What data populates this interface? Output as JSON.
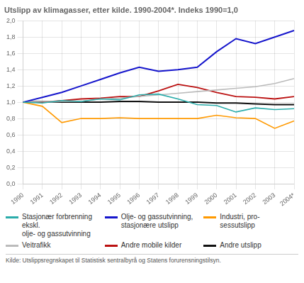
{
  "chart_data": {
    "type": "line",
    "title": "Utslipp av klimagasser, etter kilde. 1990-2004*. Indeks 1990=1,0",
    "categories": [
      "1990",
      "1991",
      "1992",
      "1993",
      "1994",
      "1995",
      "1996",
      "1997",
      "1998",
      "1999",
      "2000",
      "2001",
      "2002",
      "2003",
      "2004*"
    ],
    "series": [
      {
        "name": "Stasjonær forbrenning ekskl.\nolje- og gassutvinning",
        "color": "#2AACAA",
        "values": [
          1.0,
          0.99,
          1.02,
          1.01,
          1.04,
          1.03,
          1.09,
          1.1,
          1.04,
          0.97,
          0.96,
          0.88,
          0.93,
          0.91,
          0.92
        ]
      },
      {
        "name": "Olje- og gassutvinning,\nstasjonære utslipp",
        "color": "#1515CC",
        "values": [
          1.0,
          1.06,
          1.12,
          1.2,
          1.28,
          1.36,
          1.43,
          1.38,
          1.4,
          1.43,
          1.62,
          1.78,
          1.72,
          1.8,
          1.88
        ]
      },
      {
        "name": "Industri, pro-\nsessutslipp",
        "color": "#FF9900",
        "values": [
          1.0,
          0.95,
          0.75,
          0.8,
          0.8,
          0.81,
          0.8,
          0.8,
          0.8,
          0.8,
          0.84,
          0.81,
          0.8,
          0.68,
          0.77
        ]
      },
      {
        "name": "Veitrafikk",
        "color": "#BBBBBB",
        "values": [
          1.0,
          1.01,
          1.01,
          1.01,
          1.04,
          1.05,
          1.07,
          1.09,
          1.11,
          1.13,
          1.15,
          1.17,
          1.19,
          1.23,
          1.29
        ]
      },
      {
        "name": "Andre mobile kilder",
        "color": "#BB1111",
        "values": [
          1.0,
          1.0,
          1.02,
          1.04,
          1.05,
          1.07,
          1.07,
          1.14,
          1.22,
          1.18,
          1.12,
          1.07,
          1.06,
          1.04,
          1.07
        ]
      },
      {
        "name": "Andre utslipp",
        "color": "#111111",
        "values": [
          1.0,
          1.01,
          1.0,
          1.0,
          1.0,
          1.01,
          1.01,
          1.0,
          1.0,
          1.0,
          0.99,
          0.99,
          0.98,
          0.97,
          0.97
        ]
      }
    ],
    "ylim": [
      0.0,
      2.0
    ],
    "yticks": [
      {
        "value": 0.0,
        "label": "0,0"
      },
      {
        "value": 0.2,
        "label": "0,2"
      },
      {
        "value": 0.4,
        "label": "0,4"
      },
      {
        "value": 0.6,
        "label": "0,6"
      },
      {
        "value": 0.8,
        "label": "0,8"
      },
      {
        "value": 1.0,
        "label": "1,0"
      },
      {
        "value": 1.2,
        "label": "1,2"
      },
      {
        "value": 1.4,
        "label": "1,4"
      },
      {
        "value": 1.6,
        "label": "1,6"
      },
      {
        "value": 1.8,
        "label": "1,8"
      },
      {
        "value": 2.0,
        "label": "2,0"
      }
    ],
    "grid": true,
    "legend": "bottom",
    "source": "Kilde: Utslippsregnskapet til Statistisk sentralbyrå og Statens forurensningstilsyn."
  }
}
